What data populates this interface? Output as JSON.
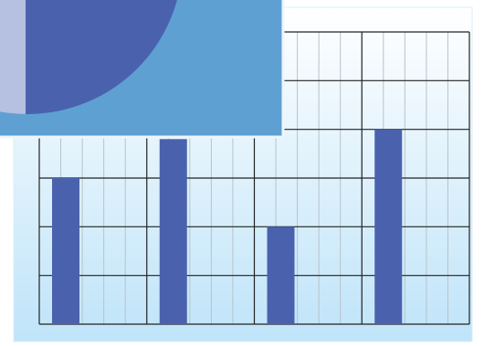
{
  "chart_data": {
    "type": "bar",
    "categories": [
      null,
      null,
      null,
      null
    ],
    "values": [
      3.0,
      3.8,
      2.0,
      4.0
    ],
    "color": "#4a62ae",
    "ylim": [
      0,
      6
    ],
    "yticks": [
      0,
      1,
      2,
      3,
      4,
      5,
      6
    ],
    "grid": true
  }
}
